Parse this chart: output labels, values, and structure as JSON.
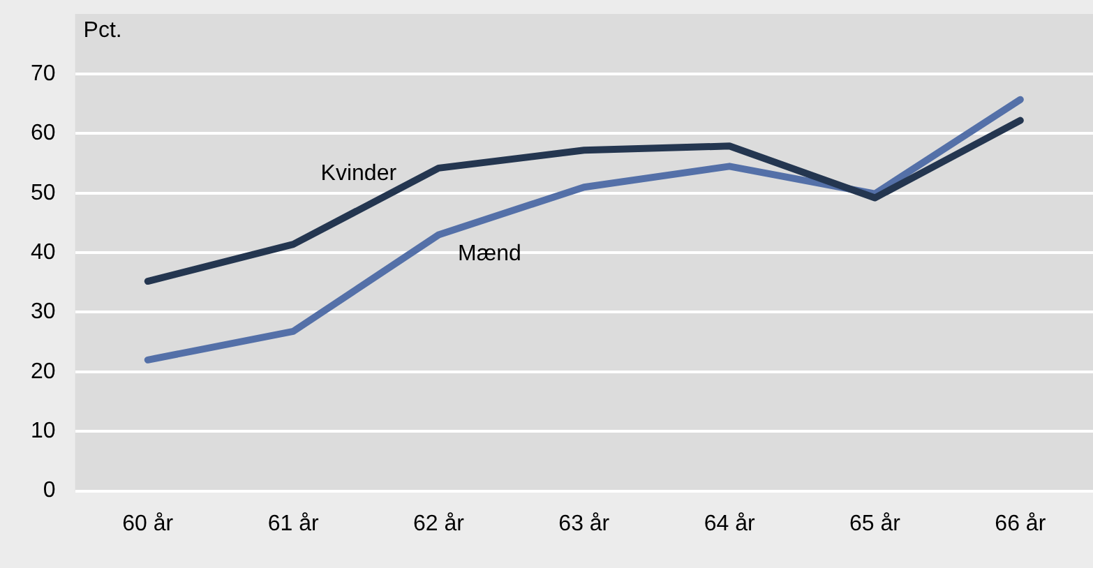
{
  "chart_data": {
    "type": "line",
    "ylabel": "Pct.",
    "categories": [
      "60 år",
      "61 år",
      "62 år",
      "63 år",
      "64 år",
      "65 år",
      "66 år"
    ],
    "series": [
      {
        "name": "Kvinder",
        "color": "#243650",
        "values": [
          35.2,
          41.4,
          54.2,
          57.2,
          57.9,
          49.2,
          62.2
        ]
      },
      {
        "name": "Mænd",
        "color": "#5470a8",
        "values": [
          22.0,
          26.8,
          43.0,
          51.0,
          54.5,
          49.9,
          65.7
        ]
      }
    ],
    "ylim": [
      0,
      70
    ],
    "yticks": [
      0,
      10,
      20,
      30,
      40,
      50,
      60,
      70
    ],
    "grid": "y",
    "legend": false,
    "marker": "none",
    "line_style": "solid"
  }
}
